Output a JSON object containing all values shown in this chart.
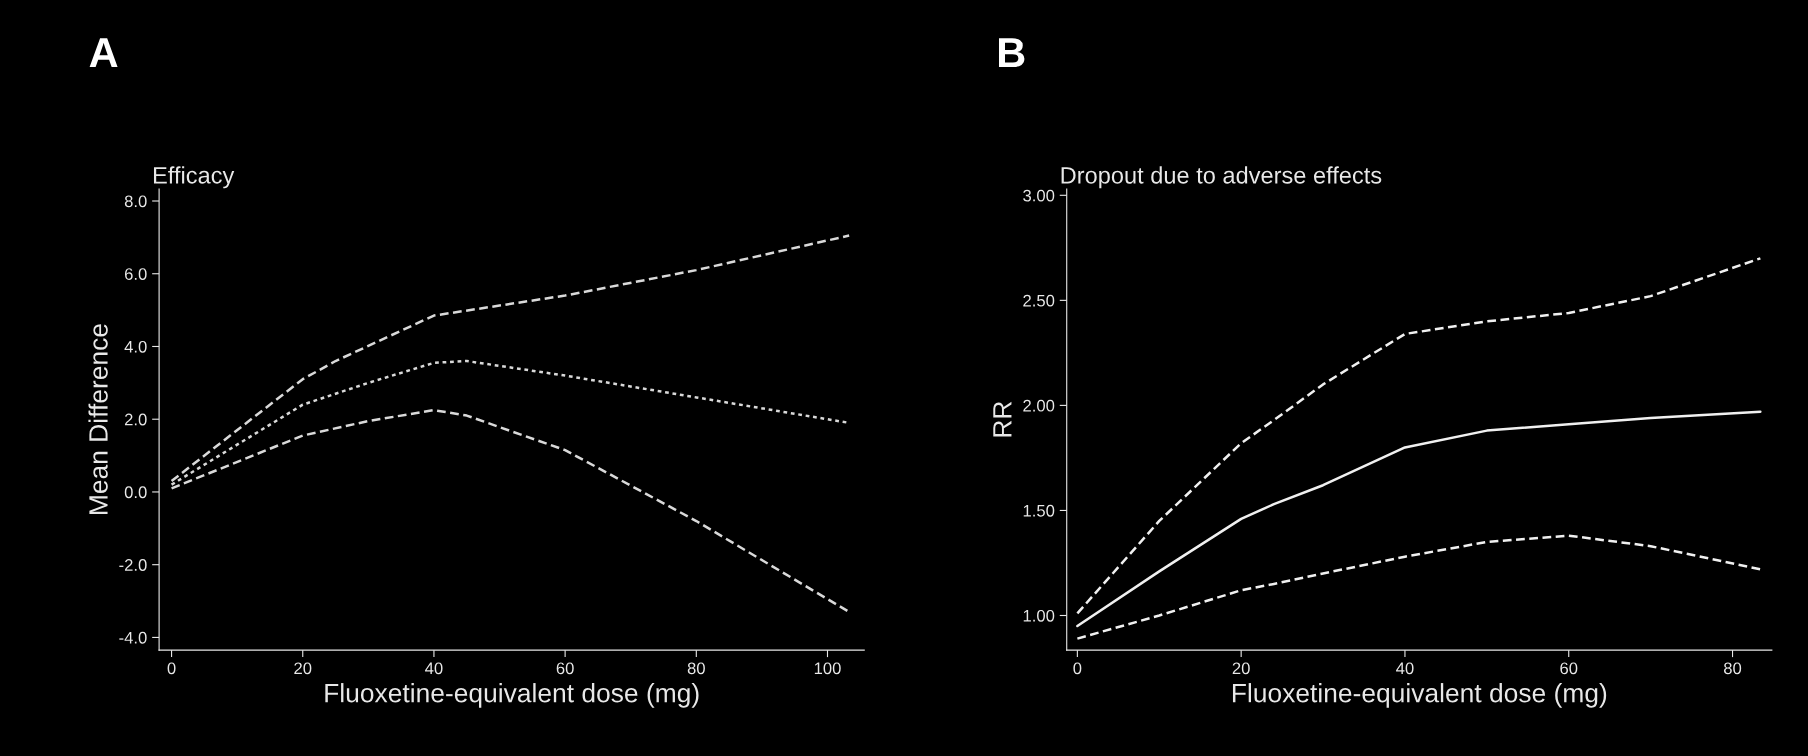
{
  "chart_data": [
    {
      "type": "line",
      "title": "Efficacy",
      "xlabel": "Fluoxetine-equivalent dose (mg)",
      "ylabel": "Mean Difference",
      "annotations": [
        "A"
      ],
      "xlim": [
        -1.9,
        105.6
      ],
      "ylim": [
        -4.35,
        8.33
      ],
      "xticks": [
        0,
        20,
        40,
        60,
        80,
        100
      ],
      "yticks": [
        {
          "value": -4,
          "label": "-4.0"
        },
        {
          "value": -2,
          "label": "-2.0"
        },
        {
          "value": 0,
          "label": "0.0"
        },
        {
          "value": 2,
          "label": "2.0"
        },
        {
          "value": 4,
          "label": "4.0"
        },
        {
          "value": 6,
          "label": "6.0"
        },
        {
          "value": 8,
          "label": "8.0"
        }
      ],
      "series": [
        {
          "color": "#d9d9d9",
          "line_style": "dashed",
          "x": [
            0,
            20,
            25,
            40,
            60,
            80,
            103.3
          ],
          "values": [
            0.3,
            3.1,
            3.6,
            4.85,
            5.4,
            6.1,
            7.05
          ]
        },
        {
          "color": "#d9d9d9",
          "line_style": "dotted",
          "x": [
            0,
            10,
            20,
            30,
            40,
            45,
            60,
            80,
            103.3
          ],
          "values": [
            0.2,
            1.3,
            2.4,
            3.0,
            3.55,
            3.6,
            3.2,
            2.6,
            1.9
          ]
        },
        {
          "color": "#d9d9d9",
          "line_style": "dashed",
          "x": [
            0,
            20,
            30,
            40,
            45,
            60,
            80,
            103.3
          ],
          "values": [
            0.1,
            1.55,
            1.95,
            2.25,
            2.1,
            1.15,
            -0.8,
            -3.3
          ]
        }
      ]
    },
    {
      "type": "line",
      "title": "Dropout due to adverse effects",
      "xlabel": "Fluoxetine-equivalent dose (mg)",
      "ylabel": "RR",
      "annotations": [
        "B"
      ],
      "xlim": [
        -1.3,
        84.8
      ],
      "ylim": [
        0.835,
        3.03
      ],
      "xticks": [
        0,
        20,
        40,
        60,
        80
      ],
      "yticks": [
        {
          "value": 1,
          "label": "1.00"
        },
        {
          "value": 1.5,
          "label": "1.50"
        },
        {
          "value": 2,
          "label": "2.00"
        },
        {
          "value": 2.5,
          "label": "2.50"
        },
        {
          "value": 3,
          "label": "3.00"
        }
      ],
      "series": [
        {
          "color": "#f0f0f0",
          "line_style": "dashed",
          "x": [
            0,
            10,
            20,
            24,
            30,
            40,
            50,
            60,
            70,
            83.4
          ],
          "values": [
            1.01,
            1.45,
            1.82,
            1.93,
            2.1,
            2.34,
            2.4,
            2.44,
            2.52,
            2.7
          ]
        },
        {
          "color": "#f0f0f0",
          "line_style": "solid",
          "x": [
            0,
            10,
            20,
            24,
            30,
            40,
            50,
            60,
            70,
            83.4
          ],
          "values": [
            0.95,
            1.21,
            1.46,
            1.53,
            1.62,
            1.8,
            1.88,
            1.91,
            1.94,
            1.97
          ]
        },
        {
          "color": "#f0f0f0",
          "line_style": "dashed",
          "x": [
            0,
            10,
            20,
            24,
            30,
            40,
            50,
            60,
            70,
            83.4
          ],
          "values": [
            0.89,
            1.0,
            1.12,
            1.15,
            1.2,
            1.28,
            1.35,
            1.38,
            1.33,
            1.22
          ]
        }
      ]
    }
  ]
}
